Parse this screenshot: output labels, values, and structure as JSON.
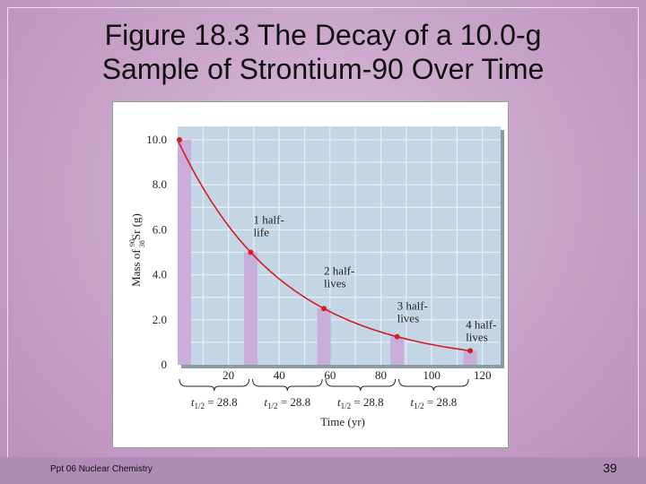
{
  "slide": {
    "title_line1": "Figure 18.3  The Decay of a 10.0-g",
    "title_line2": "Sample of Strontium-90 Over Time",
    "footer": "Ppt 06 Nuclear Chemistry",
    "page_number": "39"
  },
  "chart_data": {
    "type": "bar",
    "xlabel": "Time (yr)",
    "ylabel_text": "Mass of",
    "ylabel_isotope": "Sr",
    "ylabel_mass_number": "90",
    "ylabel_atomic_number": "38",
    "ylabel_unit": "(g)",
    "xlim": [
      0,
      130
    ],
    "ylim": [
      0,
      10.6
    ],
    "x_ticks": [
      "20",
      "40",
      "60",
      "80",
      "100",
      "120"
    ],
    "x_tick_values": [
      20,
      40,
      60,
      80,
      100,
      120
    ],
    "y_ticks": [
      "0",
      "2.0",
      "4.0",
      "6.0",
      "8.0",
      "10.0"
    ],
    "y_tick_values": [
      0,
      2,
      4,
      6,
      8,
      10
    ],
    "grid": true,
    "bars": [
      {
        "x": 0,
        "value": 10.0
      },
      {
        "x": 28.8,
        "value": 5.0
      },
      {
        "x": 57.6,
        "value": 2.5
      },
      {
        "x": 86.4,
        "value": 1.25
      },
      {
        "x": 115.2,
        "value": 0.625
      }
    ],
    "curve": {
      "initial": 10.0,
      "half_life": 28.8
    },
    "annotations": [
      {
        "line1": "1 half-",
        "line2": "life",
        "x": 28.8,
        "y": 5.0
      },
      {
        "line1": "2 half-",
        "line2": "lives",
        "x": 57.6,
        "y": 2.5
      },
      {
        "line1": "3 half-",
        "line2": "lives",
        "x": 86.4,
        "y": 1.25
      },
      {
        "line1": "4 half-",
        "line2": "lives",
        "x": 115.2,
        "y": 0.625
      }
    ],
    "half_life_labels": [
      {
        "prefix": "t",
        "sub": "1/2",
        "equals": " = 28.8",
        "start": 0,
        "end": 28.8
      },
      {
        "prefix": "t",
        "sub": "1/2",
        "equals": " = 28.8",
        "start": 28.8,
        "end": 57.6
      },
      {
        "prefix": "t",
        "sub": "1/2",
        "equals": " = 28.8",
        "start": 57.6,
        "end": 86.4
      },
      {
        "prefix": "t",
        "sub": "1/2",
        "equals": " = 28.8",
        "start": 86.4,
        "end": 115.2
      }
    ],
    "colors": {
      "plot_bg": "#c4d6e6",
      "grid": "#e6eef6",
      "bar": "#c9addb",
      "curve": "#d21e1e",
      "point": "#d21e1e"
    }
  }
}
